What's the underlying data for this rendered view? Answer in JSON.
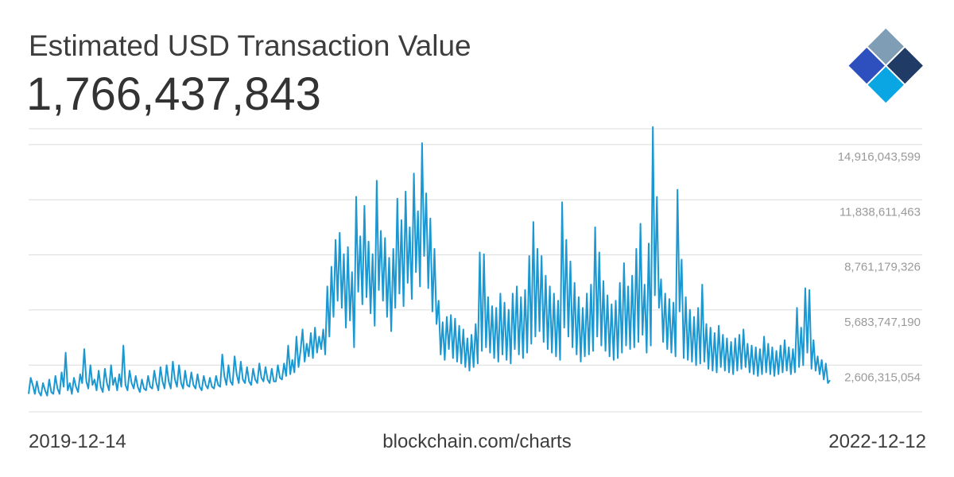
{
  "header": {
    "title": "Estimated USD Transaction Value",
    "current_value": "1,766,437,843"
  },
  "footer": {
    "start_date": "2019-12-14",
    "source": "blockchain.com/charts",
    "end_date": "2022-12-12"
  },
  "colors": {
    "line": "#1b98d2",
    "grid": "#dcdcdc",
    "tick_text": "#9a9a9a",
    "logo_dark": "#1f3b66",
    "logo_gray": "#7f9db5",
    "logo_blue": "#2e4fbe",
    "logo_light": "#b7d7ea",
    "logo_cyan": "#0aa6e3"
  },
  "chart_data": {
    "type": "line",
    "title": "Estimated USD Transaction Value",
    "xlabel": "",
    "ylabel": "",
    "x_range": [
      "2019-12-14",
      "2022-12-12"
    ],
    "ylim": [
      0,
      15800000000
    ],
    "grid": true,
    "y_ticks": [
      2606315054,
      5683747190,
      8761179326,
      11838611463,
      14916043599
    ],
    "y_tick_labels": [
      "2,606,315,054",
      "5,683,747,190",
      "8,761,179,326",
      "11,838,611,463",
      "14,916,043,599"
    ],
    "series": [
      {
        "values": [
          1000000000,
          1900000000,
          1500000000,
          1000000000,
          1700000000,
          1100000000,
          900000000,
          1600000000,
          1200000000,
          900000000,
          1800000000,
          1100000000,
          1000000000,
          2000000000,
          1300000000,
          1000000000,
          2200000000,
          1400000000,
          3300000000,
          1200000000,
          1600000000,
          1000000000,
          1900000000,
          1400000000,
          1100000000,
          2100000000,
          1600000000,
          3500000000,
          1700000000,
          1300000000,
          2600000000,
          1500000000,
          1800000000,
          1200000000,
          2300000000,
          1400000000,
          1100000000,
          2400000000,
          1600000000,
          1200000000,
          2600000000,
          1500000000,
          1900000000,
          1200000000,
          2100000000,
          1400000000,
          3700000000,
          1500000000,
          1200000000,
          2300000000,
          1600000000,
          1300000000,
          2000000000,
          1400000000,
          1100000000,
          1800000000,
          1300000000,
          1200000000,
          2000000000,
          1400000000,
          1300000000,
          2300000000,
          1600000000,
          1200000000,
          2500000000,
          1700000000,
          1300000000,
          2600000000,
          1700000000,
          1300000000,
          2800000000,
          1800000000,
          1400000000,
          2600000000,
          1600000000,
          1300000000,
          2300000000,
          1500000000,
          1400000000,
          2200000000,
          1500000000,
          1300000000,
          2100000000,
          1400000000,
          1200000000,
          2000000000,
          1500000000,
          1300000000,
          1900000000,
          1400000000,
          1300000000,
          2000000000,
          1500000000,
          1400000000,
          3200000000,
          2000000000,
          1500000000,
          2600000000,
          1700000000,
          1500000000,
          3100000000,
          2100000000,
          1600000000,
          2800000000,
          1800000000,
          1600000000,
          2500000000,
          1700000000,
          1500000000,
          2400000000,
          1800000000,
          1600000000,
          2700000000,
          1900000000,
          1700000000,
          2500000000,
          1800000000,
          1600000000,
          2400000000,
          1700000000,
          1700000000,
          2600000000,
          1900000000,
          1800000000,
          2700000000,
          2000000000,
          3700000000,
          2100000000,
          2900000000,
          2200000000,
          4200000000,
          2500000000,
          3400000000,
          4600000000,
          2800000000,
          3800000000,
          3100000000,
          4400000000,
          3000000000,
          4700000000,
          3300000000,
          4200000000,
          3500000000,
          4600000000,
          3200000000,
          7000000000,
          4200000000,
          8100000000,
          5300000000,
          9600000000,
          6200000000,
          10000000000,
          5800000000,
          8800000000,
          4700000000,
          9200000000,
          5100000000,
          7800000000,
          3600000000,
          12000000000,
          6700000000,
          9800000000,
          6000000000,
          11500000000,
          6400000000,
          9500000000,
          5500000000,
          8800000000,
          4800000000,
          12900000000,
          6800000000,
          10100000000,
          6200000000,
          9700000000,
          5300000000,
          8600000000,
          4500000000,
          9100000000,
          5800000000,
          11900000000,
          6600000000,
          10700000000,
          5900000000,
          12300000000,
          7200000000,
          10300000000,
          6300000000,
          13300000000,
          7800000000,
          11200000000,
          7000000000,
          15000000000,
          8700000000,
          12200000000,
          6900000000,
          10800000000,
          5600000000,
          9100000000,
          4900000000,
          6200000000,
          3200000000,
          5000000000,
          2900000000,
          5300000000,
          3500000000,
          5400000000,
          3000000000,
          5200000000,
          2800000000,
          4800000000,
          2700000000,
          4600000000,
          2500000000,
          4100000000,
          2300000000,
          4300000000,
          2500000000,
          4900000000,
          2700000000,
          8900000000,
          3400000000,
          8800000000,
          3600000000,
          6400000000,
          3300000000,
          5900000000,
          3000000000,
          5800000000,
          2800000000,
          6600000000,
          3200000000,
          6100000000,
          2900000000,
          5700000000,
          2700000000,
          6600000000,
          3500000000,
          7000000000,
          3200000000,
          6400000000,
          3000000000,
          6800000000,
          3300000000,
          8700000000,
          3800000000,
          10600000000,
          4200000000,
          9100000000,
          4500000000,
          8700000000,
          3900000000,
          7600000000,
          3500000000,
          7000000000,
          3300000000,
          6600000000,
          3100000000,
          6200000000,
          2900000000,
          11700000000,
          4700000000,
          9600000000,
          4200000000,
          8400000000,
          3600000000,
          7200000000,
          3200000000,
          6400000000,
          2800000000,
          5800000000,
          3100000000,
          6600000000,
          3200000000,
          7100000000,
          3400000000,
          10300000000,
          4200000000,
          8900000000,
          3700000000,
          7300000000,
          3400000000,
          6500000000,
          3100000000,
          6000000000,
          2900000000,
          6200000000,
          3000000000,
          7200000000,
          3300000000,
          8300000000,
          3700000000,
          7000000000,
          3500000000,
          7600000000,
          3600000000,
          9100000000,
          3900000000,
          10500000000,
          4300000000,
          7100000000,
          3300000000,
          9400000000,
          3700000000,
          15900000000,
          6500000000,
          12000000000,
          5800000000,
          7400000000,
          3900000000,
          6600000000,
          3500000000,
          6300000000,
          3300000000,
          6100000000,
          3100000000,
          12400000000,
          5600000000,
          8500000000,
          3000000000,
          6400000000,
          2900000000,
          5700000000,
          2800000000,
          5300000000,
          2600000000,
          5800000000,
          2700000000,
          7100000000,
          2800000000,
          4900000000,
          2400000000,
          4700000000,
          2300000000,
          4400000000,
          2200000000,
          4800000000,
          2500000000,
          4300000000,
          2300000000,
          4100000000,
          2200000000,
          3900000000,
          2100000000,
          4100000000,
          2300000000,
          4300000000,
          2400000000,
          4600000000,
          2500000000,
          3800000000,
          2200000000,
          3700000000,
          2100000000,
          3600000000,
          2000000000,
          3500000000,
          2100000000,
          4200000000,
          2200000000,
          3800000000,
          2100000000,
          3600000000,
          2000000000,
          3400000000,
          2100000000,
          3700000000,
          2200000000,
          4000000000,
          2300000000,
          3600000000,
          2100000000,
          3500000000,
          2200000000,
          5800000000,
          2500000000,
          4700000000,
          2600000000,
          6900000000,
          3300000000,
          6800000000,
          2400000000,
          4000000000,
          2300000000,
          3100000000,
          2100000000,
          2900000000,
          1800000000,
          2700000000,
          1600000000,
          1766437843
        ]
      }
    ]
  }
}
